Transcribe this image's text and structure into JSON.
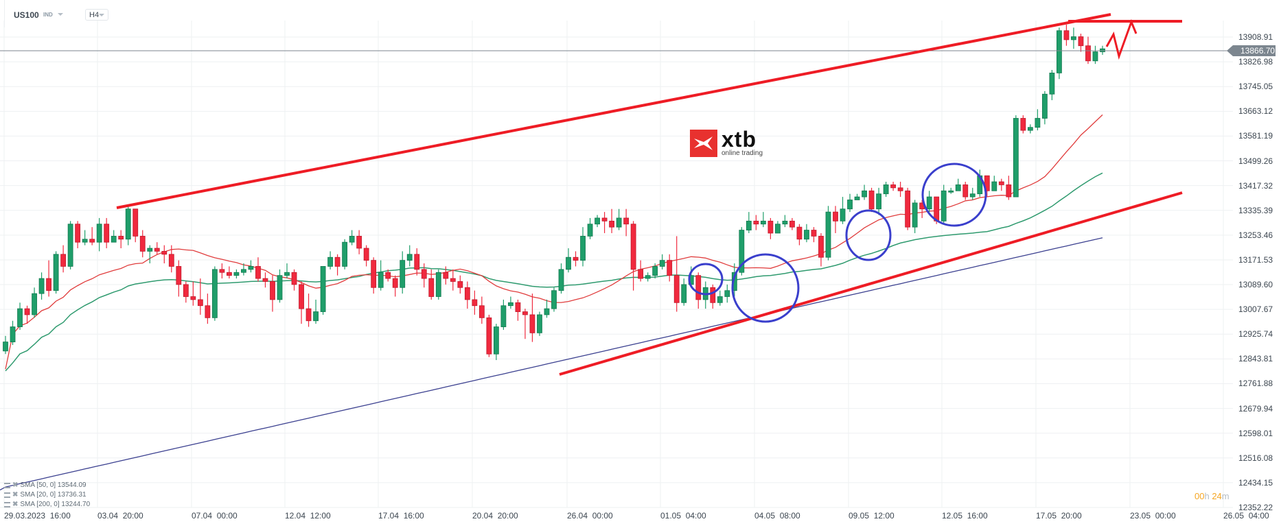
{
  "header": {
    "symbol": "US100",
    "symbol_type": "IND",
    "timeframe": "H4"
  },
  "logo": {
    "brand": "xtb",
    "tagline": "online trading"
  },
  "price_tag": "13866.70",
  "timer": {
    "hours": "00",
    "h": "h",
    "minutes": "24",
    "m": "m"
  },
  "legend": [
    {
      "label": "SMA [50, 0] 13544.09"
    },
    {
      "label": "SMA [20, 0] 13736.31"
    },
    {
      "label": "SMA [200, 0] 13244.70"
    }
  ],
  "colors": {
    "up": "#1f9e6a",
    "down": "#f0293e",
    "sma20": "#e03c3c",
    "sma50": "#2e9a6e",
    "sma200": "#3a3f8f",
    "trendline": "#ee1c25",
    "circle": "#3a3fcc",
    "grid": "#eef0f2",
    "price_line": "#7c868f"
  },
  "chart_data": {
    "type": "candlestick",
    "title": "US100 H4",
    "xlabel": "",
    "ylabel": "",
    "ylim": [
      12352.22,
      13908.91
    ],
    "y_ticks": [
      "13908.91",
      "13826.98",
      "13745.05",
      "13663.12",
      "13581.19",
      "13499.26",
      "13417.32",
      "13335.39",
      "13253.46",
      "13171.53",
      "13089.60",
      "13007.67",
      "12925.74",
      "12843.81",
      "12761.88",
      "12679.94",
      "12598.01",
      "12516.08",
      "12434.15",
      "12352.22"
    ],
    "x_ticks": [
      "29.03.2023  16:00",
      "03.04  20:00",
      "07.04  00:00",
      "12.04  12:00",
      "17.04  16:00",
      "20.04  20:00",
      "26.04  00:00",
      "01.05  04:00",
      "04.05  08:00",
      "09.05  12:00",
      "12.05  16:00",
      "17.05  20:00",
      "23.05  00:00",
      "26.05  04:00"
    ],
    "last_price": 13866.7,
    "indicators": [
      {
        "name": "SMA [50, 0]",
        "value": 13544.09
      },
      {
        "name": "SMA [20, 0]",
        "value": 13736.31
      },
      {
        "name": "SMA [200, 0]",
        "value": 13244.7
      }
    ],
    "annotations": [
      "Rising channel upper trendline",
      "Rising channel lower trendline",
      "Horizontal resistance near 13950",
      "Projected zig-zag path",
      "Blue circles marking pullbacks to SMA"
    ],
    "candles": [
      [
        12870,
        12900,
        12860,
        12920
      ],
      [
        12900,
        12950,
        12890,
        12970
      ],
      [
        12950,
        13010,
        12940,
        13030
      ],
      [
        13010,
        12990,
        12960,
        13020
      ],
      [
        12990,
        13060,
        12980,
        13080
      ],
      [
        13060,
        13110,
        13040,
        13130
      ],
      [
        13110,
        13070,
        13050,
        13170
      ],
      [
        13070,
        13190,
        13060,
        13200
      ],
      [
        13190,
        13150,
        13130,
        13220
      ],
      [
        13150,
        13290,
        13140,
        13300
      ],
      [
        13290,
        13230,
        13210,
        13300
      ],
      [
        13230,
        13240,
        13220,
        13270
      ],
      [
        13240,
        13230,
        13220,
        13280
      ],
      [
        13230,
        13290,
        13200,
        13310
      ],
      [
        13290,
        13230,
        13210,
        13310
      ],
      [
        13230,
        13250,
        13240,
        13270
      ],
      [
        13250,
        13240,
        13210,
        13270
      ],
      [
        13240,
        13340,
        13220,
        13350
      ],
      [
        13340,
        13250,
        13230,
        13330
      ],
      [
        13250,
        13200,
        13180,
        13270
      ],
      [
        13200,
        13210,
        13160,
        13220
      ],
      [
        13210,
        13200,
        13190,
        13230
      ],
      [
        13200,
        13190,
        13160,
        13220
      ],
      [
        13190,
        13150,
        13130,
        13220
      ],
      [
        13150,
        13090,
        13050,
        13170
      ],
      [
        13090,
        13050,
        13030,
        13100
      ],
      [
        13050,
        13040,
        13020,
        13100
      ],
      [
        13040,
        13020,
        12990,
        13110
      ],
      [
        13020,
        12980,
        12960,
        13060
      ],
      [
        12980,
        13140,
        12970,
        13150
      ],
      [
        13140,
        13130,
        13110,
        13160
      ],
      [
        13130,
        13120,
        13110,
        13150
      ],
      [
        13120,
        13130,
        13110,
        13140
      ],
      [
        13130,
        13140,
        13120,
        13160
      ],
      [
        13140,
        13150,
        13130,
        13170
      ],
      [
        13150,
        13110,
        13100,
        13180
      ],
      [
        13110,
        13100,
        13080,
        13130
      ],
      [
        13100,
        13040,
        13000,
        13120
      ],
      [
        13040,
        13120,
        13030,
        13140
      ],
      [
        13120,
        13130,
        13110,
        13160
      ],
      [
        13130,
        13090,
        13070,
        13140
      ],
      [
        13090,
        13010,
        12960,
        13100
      ],
      [
        13010,
        12970,
        12950,
        13060
      ],
      [
        12970,
        13000,
        12960,
        13040
      ],
      [
        13000,
        13150,
        12990,
        13150
      ],
      [
        13150,
        13180,
        13140,
        13200
      ],
      [
        13180,
        13150,
        13120,
        13190
      ],
      [
        13150,
        13230,
        13140,
        13240
      ],
      [
        13230,
        13250,
        13220,
        13270
      ],
      [
        13250,
        13210,
        13190,
        13270
      ],
      [
        13210,
        13170,
        13150,
        13220
      ],
      [
        13170,
        13080,
        13060,
        13180
      ],
      [
        13080,
        13130,
        13070,
        13170
      ],
      [
        13130,
        13110,
        13100,
        13140
      ],
      [
        13110,
        13080,
        13050,
        13120
      ],
      [
        13080,
        13170,
        13060,
        13200
      ],
      [
        13170,
        13190,
        13150,
        13220
      ],
      [
        13190,
        13140,
        13120,
        13210
      ],
      [
        13140,
        13110,
        13080,
        13160
      ],
      [
        13110,
        13050,
        13040,
        13140
      ],
      [
        13050,
        13130,
        13040,
        13140
      ],
      [
        13130,
        13110,
        13090,
        13150
      ],
      [
        13110,
        13100,
        13070,
        13140
      ],
      [
        13100,
        13080,
        13060,
        13120
      ],
      [
        13080,
        13040,
        13010,
        13100
      ],
      [
        13040,
        13020,
        12990,
        13070
      ],
      [
        13020,
        12980,
        12960,
        13050
      ],
      [
        12980,
        12860,
        12850,
        12990
      ],
      [
        12860,
        12950,
        12840,
        12960
      ],
      [
        12950,
        13020,
        12940,
        13040
      ],
      [
        13020,
        13030,
        13010,
        13050
      ],
      [
        13030,
        13000,
        12970,
        13040
      ],
      [
        13000,
        12990,
        12910,
        13010
      ],
      [
        12990,
        12930,
        12900,
        13060
      ],
      [
        12930,
        12990,
        12920,
        13000
      ],
      [
        12990,
        13010,
        12980,
        13040
      ],
      [
        13010,
        13070,
        13000,
        13080
      ],
      [
        13070,
        13140,
        13060,
        13160
      ],
      [
        13140,
        13180,
        13130,
        13210
      ],
      [
        13180,
        13170,
        13150,
        13200
      ],
      [
        13170,
        13250,
        13150,
        13280
      ],
      [
        13250,
        13290,
        13240,
        13310
      ],
      [
        13290,
        13310,
        13280,
        13320
      ],
      [
        13310,
        13300,
        13260,
        13330
      ],
      [
        13300,
        13280,
        13260,
        13340
      ],
      [
        13280,
        13310,
        13270,
        13340
      ],
      [
        13310,
        13290,
        13250,
        13340
      ],
      [
        13290,
        13140,
        13070,
        13300
      ],
      [
        13140,
        13110,
        13100,
        13170
      ],
      [
        13110,
        13120,
        13100,
        13130
      ],
      [
        13120,
        13150,
        13110,
        13160
      ],
      [
        13150,
        13170,
        13140,
        13190
      ],
      [
        13170,
        13120,
        13100,
        13190
      ],
      [
        13120,
        13030,
        13000,
        13250
      ],
      [
        13030,
        13090,
        13020,
        13110
      ],
      [
        13090,
        13120,
        13080,
        13150
      ],
      [
        13120,
        13040,
        13010,
        13130
      ],
      [
        13040,
        13080,
        13010,
        13100
      ],
      [
        13080,
        13030,
        13010,
        13090
      ],
      [
        13030,
        13050,
        13020,
        13070
      ],
      [
        13050,
        13070,
        13030,
        13090
      ],
      [
        13070,
        13130,
        13050,
        13160
      ],
      [
        13130,
        13270,
        13120,
        13280
      ],
      [
        13270,
        13300,
        13260,
        13330
      ],
      [
        13300,
        13290,
        13270,
        13320
      ],
      [
        13290,
        13300,
        13280,
        13330
      ],
      [
        13300,
        13260,
        13240,
        13310
      ],
      [
        13260,
        13290,
        13260,
        13300
      ],
      [
        13290,
        13300,
        13280,
        13320
      ],
      [
        13300,
        13280,
        13270,
        13310
      ],
      [
        13280,
        13240,
        13220,
        13290
      ],
      [
        13240,
        13270,
        13230,
        13290
      ],
      [
        13270,
        13250,
        13230,
        13280
      ],
      [
        13250,
        13180,
        13150,
        13260
      ],
      [
        13180,
        13330,
        13170,
        13350
      ],
      [
        13330,
        13300,
        13260,
        13350
      ],
      [
        13300,
        13340,
        13290,
        13380
      ],
      [
        13340,
        13370,
        13330,
        13390
      ],
      [
        13370,
        13380,
        13370,
        13390
      ],
      [
        13380,
        13400,
        13370,
        13420
      ],
      [
        13400,
        13340,
        13330,
        13410
      ],
      [
        13340,
        13390,
        13320,
        13410
      ],
      [
        13390,
        13420,
        13380,
        13430
      ],
      [
        13420,
        13410,
        13400,
        13430
      ],
      [
        13410,
        13400,
        13380,
        13430
      ],
      [
        13400,
        13280,
        13270,
        13410
      ],
      [
        13280,
        13360,
        13260,
        13370
      ],
      [
        13360,
        13340,
        13310,
        13370
      ],
      [
        13340,
        13380,
        13330,
        13400
      ],
      [
        13380,
        13300,
        13290,
        13380
      ],
      [
        13300,
        13400,
        13290,
        13420
      ],
      [
        13400,
        13400,
        13390,
        13410
      ],
      [
        13400,
        13420,
        13400,
        13440
      ],
      [
        13420,
        13380,
        13370,
        13430
      ],
      [
        13380,
        13390,
        13370,
        13410
      ],
      [
        13390,
        13450,
        13380,
        13470
      ],
      [
        13450,
        13400,
        13380,
        13450
      ],
      [
        13400,
        13430,
        13400,
        13450
      ],
      [
        13430,
        13420,
        13400,
        13440
      ],
      [
        13420,
        13380,
        13370,
        13450
      ],
      [
        13380,
        13640,
        13380,
        13650
      ],
      [
        13640,
        13600,
        13590,
        13650
      ],
      [
        13600,
        13610,
        13590,
        13620
      ],
      [
        13610,
        13640,
        13600,
        13670
      ],
      [
        13640,
        13720,
        13620,
        13730
      ],
      [
        13720,
        13790,
        13700,
        13800
      ],
      [
        13790,
        13930,
        13770,
        13940
      ],
      [
        13930,
        13900,
        13880,
        13950
      ],
      [
        13900,
        13910,
        13870,
        13940
      ],
      [
        13910,
        13880,
        13860,
        13920
      ],
      [
        13880,
        13830,
        13820,
        13910
      ],
      [
        13830,
        13860,
        13820,
        13880
      ],
      [
        13860,
        13870,
        13850,
        13880
      ]
    ]
  }
}
